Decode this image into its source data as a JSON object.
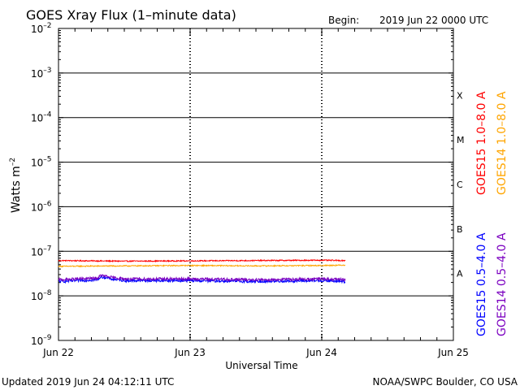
{
  "chart_data": {
    "type": "line",
    "title": "GOES Xray Flux (1–minute data)",
    "begin_label": "Begin:",
    "begin_value": "2019 Jun 22 0000 UTC",
    "xlabel": "Universal Time",
    "ylabel": "Watts m",
    "ylabel_exponent": "–2",
    "y_scale": "log",
    "ylim": [
      1e-09,
      0.01
    ],
    "xlim_days": [
      0,
      3
    ],
    "grid": true,
    "legend_placement": "right, vertical",
    "x_ticks": [
      {
        "day": 0,
        "label": "Jun 22"
      },
      {
        "day": 1,
        "label": "Jun 23"
      },
      {
        "day": 2,
        "label": "Jun 24"
      },
      {
        "day": 3,
        "label": "Jun 25"
      }
    ],
    "y_ticks": [
      {
        "exp": -2,
        "base": "10",
        "sup": "–2"
      },
      {
        "exp": -3,
        "base": "10",
        "sup": "–3"
      },
      {
        "exp": -4,
        "base": "10",
        "sup": "–4"
      },
      {
        "exp": -5,
        "base": "10",
        "sup": "–5"
      },
      {
        "exp": -6,
        "base": "10",
        "sup": "–6"
      },
      {
        "exp": -7,
        "base": "10",
        "sup": "–7"
      },
      {
        "exp": -8,
        "base": "10",
        "sup": "–8"
      },
      {
        "exp": -9,
        "base": "10",
        "sup": "–9"
      }
    ],
    "flare_classes": [
      {
        "label": "X",
        "center_exp": -3.5
      },
      {
        "label": "M",
        "center_exp": -4.5
      },
      {
        "label": "C",
        "center_exp": -5.5
      },
      {
        "label": "B",
        "center_exp": -6.5
      },
      {
        "label": "A",
        "center_exp": -7.5
      }
    ],
    "data_end_day": 2.18,
    "series": [
      {
        "name": "GOES15 1.0–8.0 A",
        "color": "#ff0000",
        "x": [
          0,
          0.5,
          1,
          1.5,
          2,
          2.18
        ],
        "y": [
          6.2e-08,
          6e-08,
          6.1e-08,
          6.2e-08,
          6.3e-08,
          6.2e-08
        ]
      },
      {
        "name": "GOES14 1.0–8.0 A",
        "color": "#ffa500",
        "x": [
          0,
          0.5,
          1,
          1.5,
          2,
          2.18
        ],
        "y": [
          4.6e-08,
          4.7e-08,
          4.8e-08,
          4.7e-08,
          4.8e-08,
          4.9e-08
        ]
      },
      {
        "name": "GOES15 0.5–4.0 A",
        "color": "#0000ff",
        "x": [
          0,
          0.3,
          0.32,
          0.4,
          0.5,
          1,
          1.5,
          2,
          2.18
        ],
        "y": [
          2.1e-08,
          2.3e-08,
          2.7e-08,
          2.4e-08,
          2.2e-08,
          2.2e-08,
          2.1e-08,
          2.2e-08,
          2.1e-08
        ]
      },
      {
        "name": "GOES14 0.5–4.0 A",
        "color": "#7b00c0",
        "x": [
          0,
          0.3,
          0.32,
          0.4,
          0.5,
          1,
          1.5,
          2,
          2.18
        ],
        "y": [
          2.3e-08,
          2.5e-08,
          2.9e-08,
          2.6e-08,
          2.4e-08,
          2.4e-08,
          2.3e-08,
          2.4e-08,
          2.3e-08
        ]
      }
    ]
  },
  "footer": {
    "updated": "Updated 2019 Jun 24 04:12:11 UTC",
    "credit": "NOAA/SWPC Boulder, CO USA"
  }
}
